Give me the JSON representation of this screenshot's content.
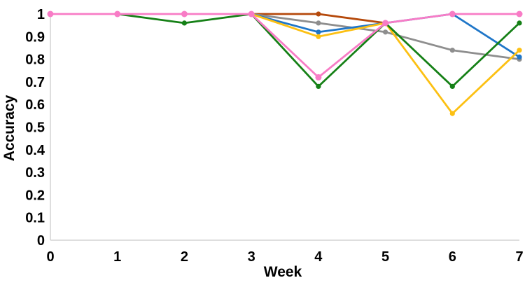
{
  "chart_data": {
    "type": "line",
    "title": "",
    "xlabel": "Week",
    "ylabel": "Accuracy",
    "x": [
      0,
      1,
      2,
      3,
      4,
      5,
      6,
      7
    ],
    "xlim": [
      0,
      7
    ],
    "ylim": [
      0,
      1
    ],
    "xtick_labels": [
      "0",
      "1",
      "2",
      "3",
      "4",
      "5",
      "6",
      "7"
    ],
    "ytick_values": [
      0,
      0.1,
      0.2,
      0.3,
      0.4,
      0.5,
      0.6,
      0.7,
      0.8,
      0.9,
      1
    ],
    "ytick_labels": [
      "0",
      "0.1",
      "0.2",
      "0.3",
      "0.4",
      "0.5",
      "0.6",
      "0.7",
      "0.8",
      "0.9",
      "1"
    ],
    "grid": false,
    "legend": "none",
    "axis_color": "#d3d3d3",
    "text_color": "#000000",
    "series": [
      {
        "name": "brown",
        "color": "#b5490b",
        "values": [
          null,
          null,
          null,
          1,
          1,
          0.96,
          null,
          null
        ]
      },
      {
        "name": "gray",
        "color": "#8e8e8e",
        "values": [
          null,
          null,
          null,
          1,
          0.96,
          0.92,
          0.84,
          0.8
        ]
      },
      {
        "name": "blue",
        "color": "#1f76c8",
        "values": [
          null,
          null,
          null,
          1,
          0.92,
          0.96,
          1,
          0.81
        ]
      },
      {
        "name": "gold",
        "color": "#fcc013",
        "values": [
          null,
          null,
          null,
          1,
          0.9,
          0.96,
          0.56,
          0.84
        ]
      },
      {
        "name": "green",
        "color": "#158016",
        "values": [
          null,
          1,
          0.96,
          1,
          0.68,
          0.96,
          0.68,
          0.96
        ]
      },
      {
        "name": "pink",
        "color": "#f87cc6",
        "values": [
          1,
          1,
          1,
          1,
          0.72,
          0.96,
          1,
          1
        ]
      }
    ]
  }
}
